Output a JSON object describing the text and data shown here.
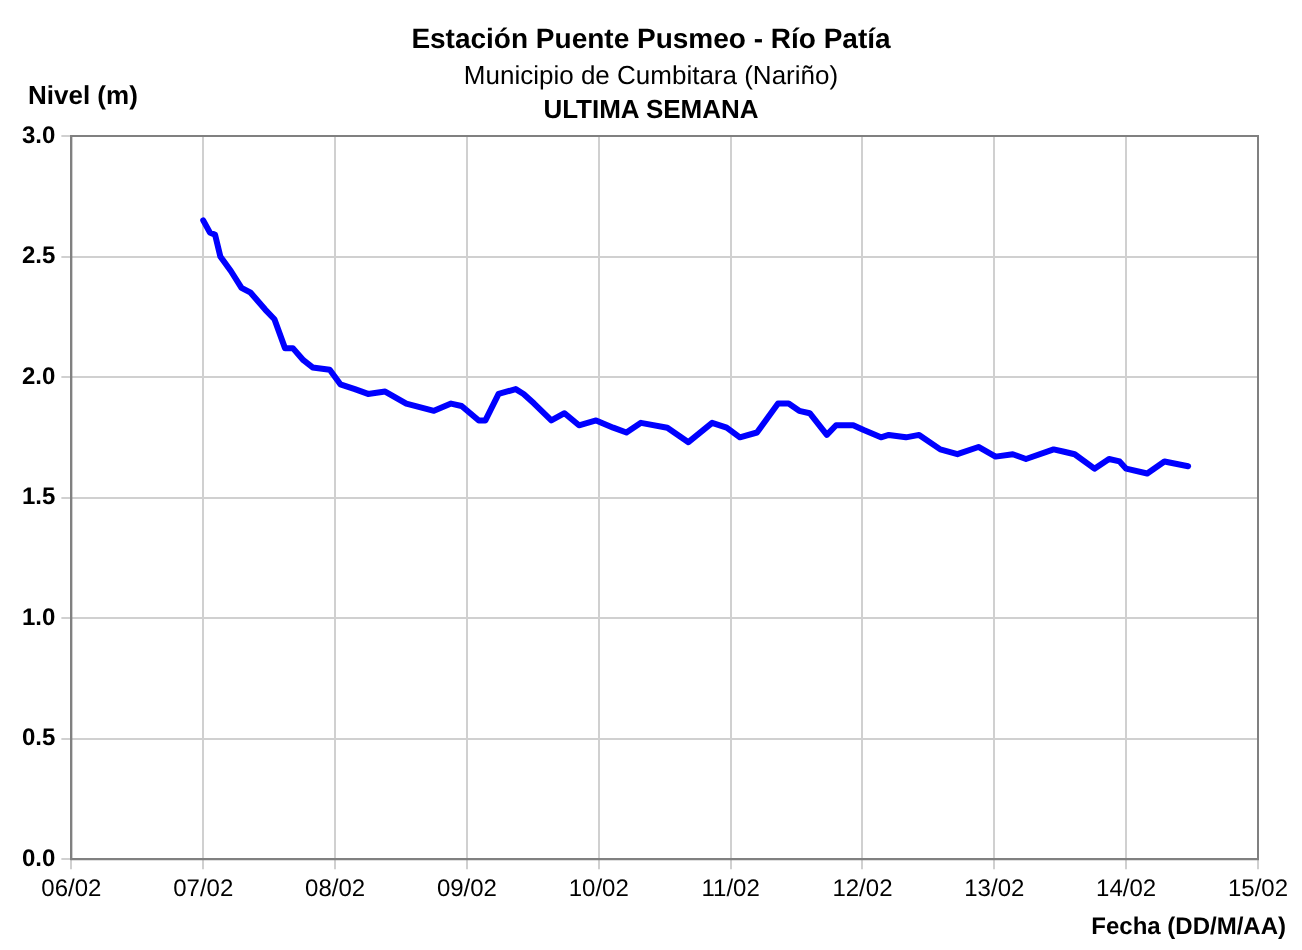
{
  "chart_data": {
    "type": "line",
    "title": "Estación Puente Pusmeo - Río Patía",
    "subtitle": "Municipio de Cumbitara (Nariño)",
    "annotations": [
      "ULTIMA SEMANA"
    ],
    "ylabel": "Nivel (m)",
    "xlabel": "Fecha (DD/M/AA)",
    "xlim": [
      "--02-06",
      "--02-15"
    ],
    "xticks": [
      {
        "value": "--02-06",
        "label": "06/02"
      },
      {
        "value": "--02-07",
        "label": "07/02"
      },
      {
        "value": "--02-08",
        "label": "08/02"
      },
      {
        "value": "--02-09",
        "label": "09/02"
      },
      {
        "value": "--02-10",
        "label": "10/02"
      },
      {
        "value": "--02-11",
        "label": "11/02"
      },
      {
        "value": "--02-12",
        "label": "12/02"
      },
      {
        "value": "--02-13",
        "label": "13/02"
      },
      {
        "value": "--02-14",
        "label": "14/02"
      },
      {
        "value": "--02-15",
        "label": "15/02"
      }
    ],
    "ylim": [
      0,
      3
    ],
    "yticks": [
      {
        "value": 0,
        "label": "0.0"
      },
      {
        "value": 0.5,
        "label": "0.5"
      },
      {
        "value": 1,
        "label": "1.0"
      },
      {
        "value": 1.5,
        "label": "1.5"
      },
      {
        "value": 2,
        "label": "2.0"
      },
      {
        "value": 2.5,
        "label": "2.5"
      },
      {
        "value": 3,
        "label": "3.0"
      }
    ],
    "grid": true,
    "legend": false,
    "marker": "none",
    "line_style": "solid",
    "series": [
      {
        "color": "#0000ff",
        "x": [
          "--02-07T00:00",
          "--02-07T01:12",
          "--02-07T02:10",
          "--02-07T03:07",
          "--02-07T05:02",
          "--02-07T06:58",
          "--02-07T08:38",
          "--02-07T11:17",
          "--02-07T12:58",
          "--02-07T14:53",
          "--02-07T16:19",
          "--02-07T18:14",
          "--02-07T19:55",
          "--02-07T23:02",
          "--02-08T00:58",
          "--02-08T03:36",
          "--02-08T06:00",
          "--02-08T09:07",
          "--02-08T12:58",
          "--02-08T18:00",
          "--02-08T21:07",
          "--02-08T23:02",
          "--02-09T02:10",
          "--02-09T03:22",
          "--02-09T05:46",
          "--02-09T08:53",
          "--02-09T10:19",
          "--02-09T12:14",
          "--02-09T15:22",
          "--02-09T17:46",
          "--02-09T20:24",
          "--02-09T23:31",
          "--02-10T02:38",
          "--02-10T05:02",
          "--02-10T07:41",
          "--02-10T12:29",
          "--02-10T16:19",
          "--02-10T20:38",
          "--02-10T23:17",
          "--02-11T01:41",
          "--02-11T04:48",
          "--02-11T08:38",
          "--02-11T10:34",
          "--02-11T12:29",
          "--02-11T14:24",
          "--02-11T17:31",
          "--02-11T19:12",
          "--02-11T22:19",
          "--02-12T00:14",
          "--02-12T03:22",
          "--02-12T04:48",
          "--02-12T07:55",
          "--02-12T10:19",
          "--02-12T14:10",
          "--02-12T17:17",
          "--02-12T21:07",
          "--02-13T00:14",
          "--02-13T03:22",
          "--02-13T05:46",
          "--02-13T10:48",
          "--02-13T12:43",
          "--02-13T14:38",
          "--02-13T18:14",
          "--02-13T20:53",
          "--02-13T22:48",
          "--02-14T00:00",
          "--02-14T03:50",
          "--02-14T06:58",
          "--02-14T11:17"
        ],
        "values": [
          2.65,
          2.6,
          2.59,
          2.5,
          2.44,
          2.37,
          2.35,
          2.28,
          2.24,
          2.12,
          2.12,
          2.07,
          2.04,
          2.03,
          1.97,
          1.95,
          1.93,
          1.94,
          1.89,
          1.86,
          1.89,
          1.88,
          1.82,
          1.82,
          1.93,
          1.95,
          1.93,
          1.89,
          1.82,
          1.85,
          1.8,
          1.82,
          1.79,
          1.77,
          1.81,
          1.79,
          1.73,
          1.81,
          1.79,
          1.75,
          1.77,
          1.89,
          1.89,
          1.86,
          1.85,
          1.76,
          1.8,
          1.8,
          1.78,
          1.75,
          1.76,
          1.75,
          1.76,
          1.7,
          1.68,
          1.71,
          1.67,
          1.68,
          1.66,
          1.7,
          1.69,
          1.68,
          1.62,
          1.66,
          1.65,
          1.62,
          1.6,
          1.65,
          1.63
        ]
      }
    ]
  }
}
